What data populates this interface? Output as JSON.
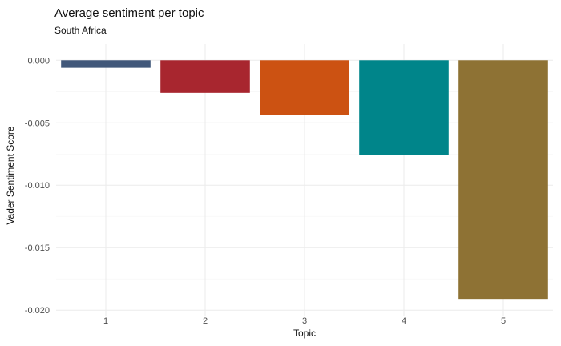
{
  "chart_data": {
    "type": "bar",
    "title": "Average sentiment per topic",
    "subtitle": "South Africa",
    "xlabel": "Topic",
    "ylabel": "Vader Sentiment Score",
    "categories": [
      "1",
      "2",
      "3",
      "4",
      "5"
    ],
    "values": [
      -0.0006,
      -0.0026,
      -0.0044,
      -0.0076,
      -0.0191
    ],
    "colors": [
      "#41587a",
      "#a8262f",
      "#cc5212",
      "#00858a",
      "#8e7234"
    ],
    "ylim": [
      -0.0205,
      0.0013
    ],
    "yticks": [
      0.0,
      -0.005,
      -0.01,
      -0.015,
      -0.02
    ],
    "ytick_labels": [
      "0.000",
      "-0.005",
      "-0.010",
      "-0.015",
      "-0.020"
    ],
    "grid": true,
    "legend": "none"
  }
}
